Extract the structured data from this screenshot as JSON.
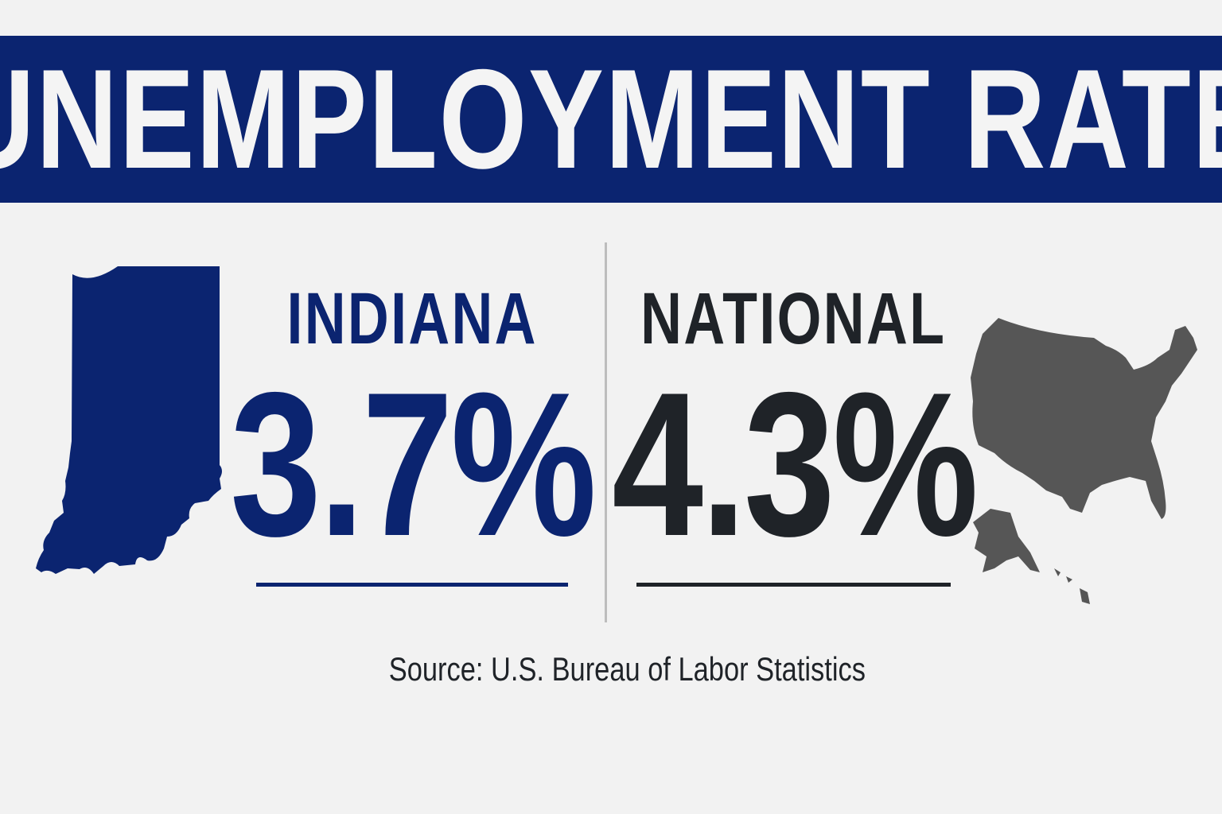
{
  "title": "UNEMPLOYMENT RATE",
  "indiana": {
    "label": "INDIANA",
    "value": "3.7%",
    "icon": "indiana-state-map-icon"
  },
  "national": {
    "label": "NATIONAL",
    "value": "4.3%",
    "icon": "us-map-icon"
  },
  "source": "Source: U.S. Bureau of Labor Statistics",
  "colors": {
    "banner": "#0b2470",
    "indiana": "#0b2470",
    "national": "#1f2328",
    "us_map": "#565656",
    "background": "#f2f2f2"
  }
}
